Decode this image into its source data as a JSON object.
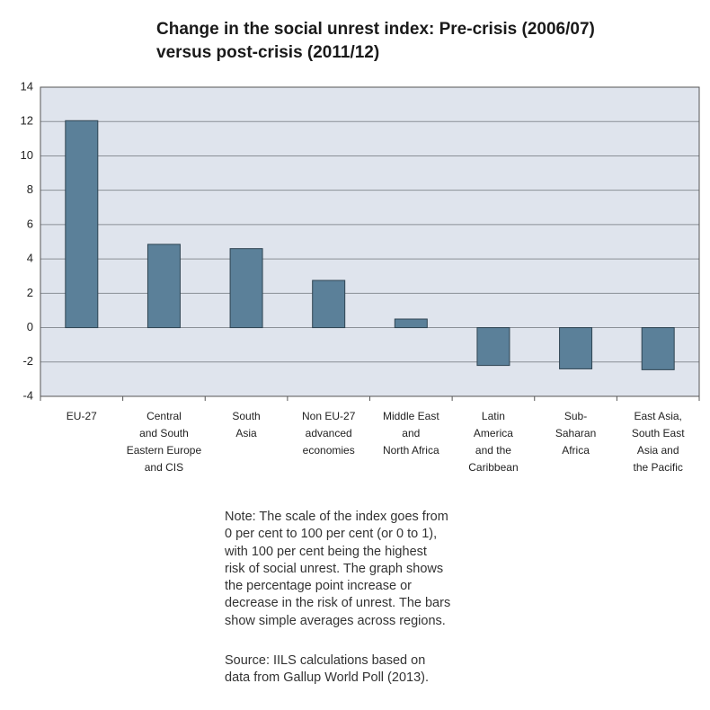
{
  "chart_data": {
    "type": "bar",
    "title": "Change in the social unrest index: Pre-crisis (2006/07)\nversus post-crisis (2011/12)",
    "categories": [
      "EU-27",
      "Central\nand South\nEastern Europe\nand CIS",
      "South\nAsia",
      "Non EU-27\nadvanced\neconomies",
      "Middle East\nand\nNorth Africa",
      "Latin\nAmerica\nand the\nCaribbean",
      "Sub-\nSaharan\nAfrica",
      "East Asia,\nSouth East\nAsia and\nthe Pacific"
    ],
    "values": [
      12.05,
      4.85,
      4.6,
      2.75,
      0.5,
      -2.2,
      -2.4,
      -2.45
    ],
    "color": "#5b8099",
    "ylim": [
      -4,
      14
    ],
    "yticks": [
      -4,
      -2,
      0,
      2,
      4,
      6,
      8,
      10,
      12,
      14
    ],
    "grid": true,
    "note": "Note: The scale of the index goes from\n0 per cent to 100 per cent (or 0 to 1),\nwith 100 per cent being the highest\nrisk of social unrest. The graph shows\nthe percentage point increase or\ndecrease in the risk of unrest. The bars\nshow simple averages across regions.",
    "source": "Source: IILS calculations based on\ndata from Gallup World Poll (2013)."
  }
}
